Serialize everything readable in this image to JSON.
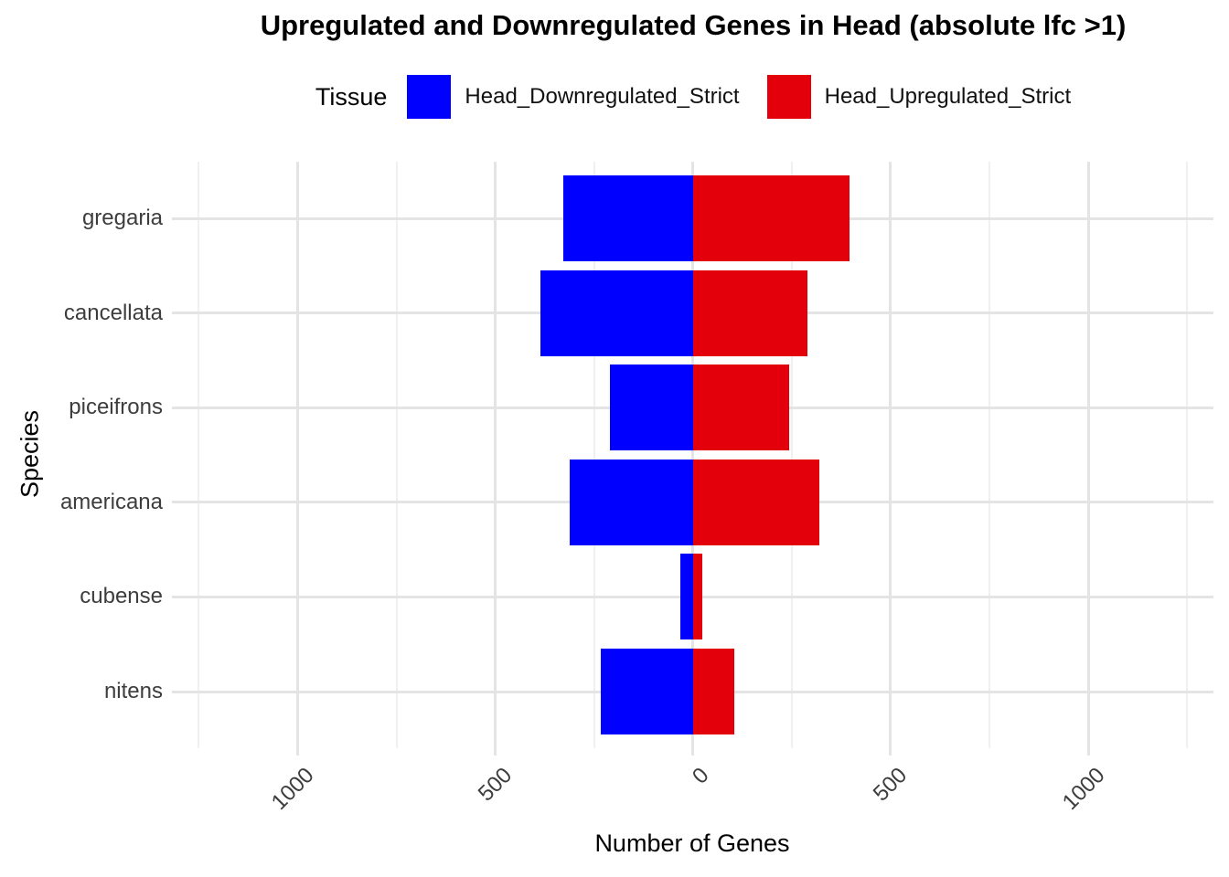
{
  "chart_data": {
    "type": "bar",
    "orientation": "horizontal-diverging",
    "title": "Upregulated and Downregulated Genes in Head (absolute lfc >1)",
    "xlabel": "Number of Genes",
    "ylabel": "Species",
    "categories": [
      "gregaria",
      "cancellata",
      "piceifrons",
      "americana",
      "cubense",
      "nitens"
    ],
    "series": [
      {
        "name": "Head_Downregulated_Strict",
        "color": "#0000ff",
        "direction": "negative",
        "values": [
          328,
          386,
          211,
          311,
          33,
          234
        ]
      },
      {
        "name": "Head_Upregulated_Strict",
        "color": "#e4000b",
        "direction": "positive",
        "values": [
          396,
          290,
          244,
          321,
          24,
          104
        ]
      }
    ],
    "x_ticks": [
      -1000,
      -500,
      0,
      500,
      1000
    ],
    "x_tick_labels": [
      "1000",
      "500",
      "0",
      "500",
      "1000"
    ],
    "x_minor_ticks": [
      -1250,
      -750,
      -250,
      250,
      750,
      1250
    ],
    "xlim": [
      -1318,
      1317
    ],
    "grid": true,
    "legend": {
      "title": "Tissue",
      "position": "top"
    }
  }
}
